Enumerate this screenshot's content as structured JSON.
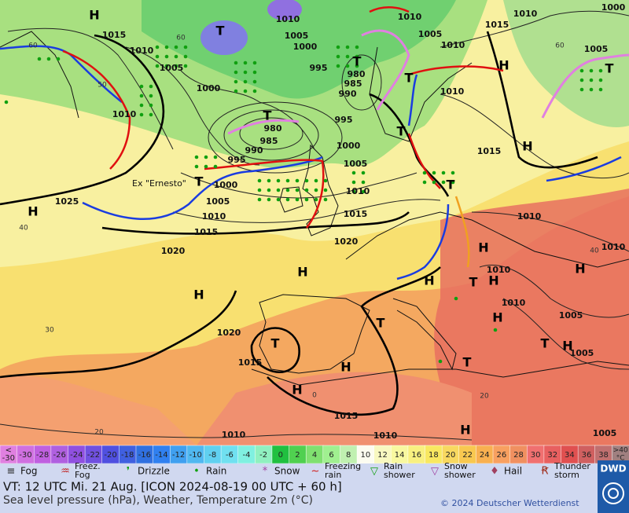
{
  "map": {
    "pressure_labels": [
      1015,
      1010,
      1005,
      1000,
      1010,
      995,
      980,
      985,
      990,
      995,
      980,
      985,
      990,
      995,
      1000,
      1005,
      1000,
      1005,
      1010,
      1015,
      1010,
      1015,
      1020,
      1020,
      1025,
      1010,
      1005,
      1000,
      1005,
      1010,
      1010,
      1015,
      1010,
      1005,
      1010,
      1015,
      1000,
      1010,
      1010,
      1010,
      1010,
      1005,
      1005,
      1020,
      1015,
      1015,
      1010,
      1010,
      1005
    ],
    "highs": [
      "H",
      "H",
      "H",
      "H",
      "H",
      "H",
      "H",
      "H",
      "H",
      "H",
      "H",
      "H",
      "H",
      "H",
      "H"
    ],
    "lows": [
      "T",
      "T",
      "T",
      "T",
      "T",
      "T",
      "T",
      "T",
      "T",
      "T",
      "T",
      "T",
      "T"
    ],
    "isotherm_labels": [
      60,
      50,
      60,
      40,
      30,
      20,
      0,
      20,
      40,
      60
    ],
    "storm_name": "Ex \"Ernesto\""
  },
  "colorbar": {
    "low_end": [
      "<",
      "-30"
    ],
    "ticks": [
      -30,
      -28,
      -26,
      -24,
      -22,
      -20,
      -18,
      -16,
      -14,
      -12,
      -10,
      -8,
      -6,
      -4,
      -2,
      0,
      2,
      4,
      6,
      8,
      10,
      12,
      14,
      16,
      18,
      20,
      22,
      24,
      26,
      28,
      30,
      32,
      34,
      36,
      38
    ],
    "high_end": [
      ">40",
      "°C"
    ],
    "colors": [
      "#e080e0",
      "#d070e0",
      "#c060e0",
      "#b060e0",
      "#9050e0",
      "#7050e0",
      "#5050e0",
      "#4060e0",
      "#3070e0",
      "#3080f0",
      "#40a0f0",
      "#50b8f0",
      "#60d0f0",
      "#70e0f0",
      "#80f0e0",
      "#90f0c0",
      "#20c040",
      "#50d050",
      "#80e070",
      "#a0f090",
      "#c0f0b0",
      "#fcfcf0",
      "#f8f8c0",
      "#f8f8a0",
      "#f8f080",
      "#f8e860",
      "#f8d860",
      "#f8c850",
      "#f8b050",
      "#f8a060",
      "#f09060",
      "#f07070",
      "#e86060",
      "#e05050",
      "#d06060",
      "#c07070",
      "#a08080"
    ]
  },
  "legend": [
    [
      "Fog"
    ],
    [
      "Freez.",
      "Fog"
    ],
    [
      "Drizzle"
    ],
    [
      "Rain"
    ],
    [
      "Snow"
    ],
    [
      "Freezing",
      "rain"
    ],
    [
      "Rain",
      "shower"
    ],
    [
      "Snow",
      "shower"
    ],
    [
      "Hail"
    ],
    [
      "Thunder",
      "storm"
    ]
  ],
  "footer": {
    "valid_time": "VT: 12 UTC Mi.  21 Aug. [ICON 2024-08-19  00 UTC + 60 h]",
    "description": "Sea level pressure (hPa), Weather, Temperature 2m (°C)",
    "copyright": "© 2024 Deutscher Wetterdienst",
    "logo": "DWD"
  }
}
